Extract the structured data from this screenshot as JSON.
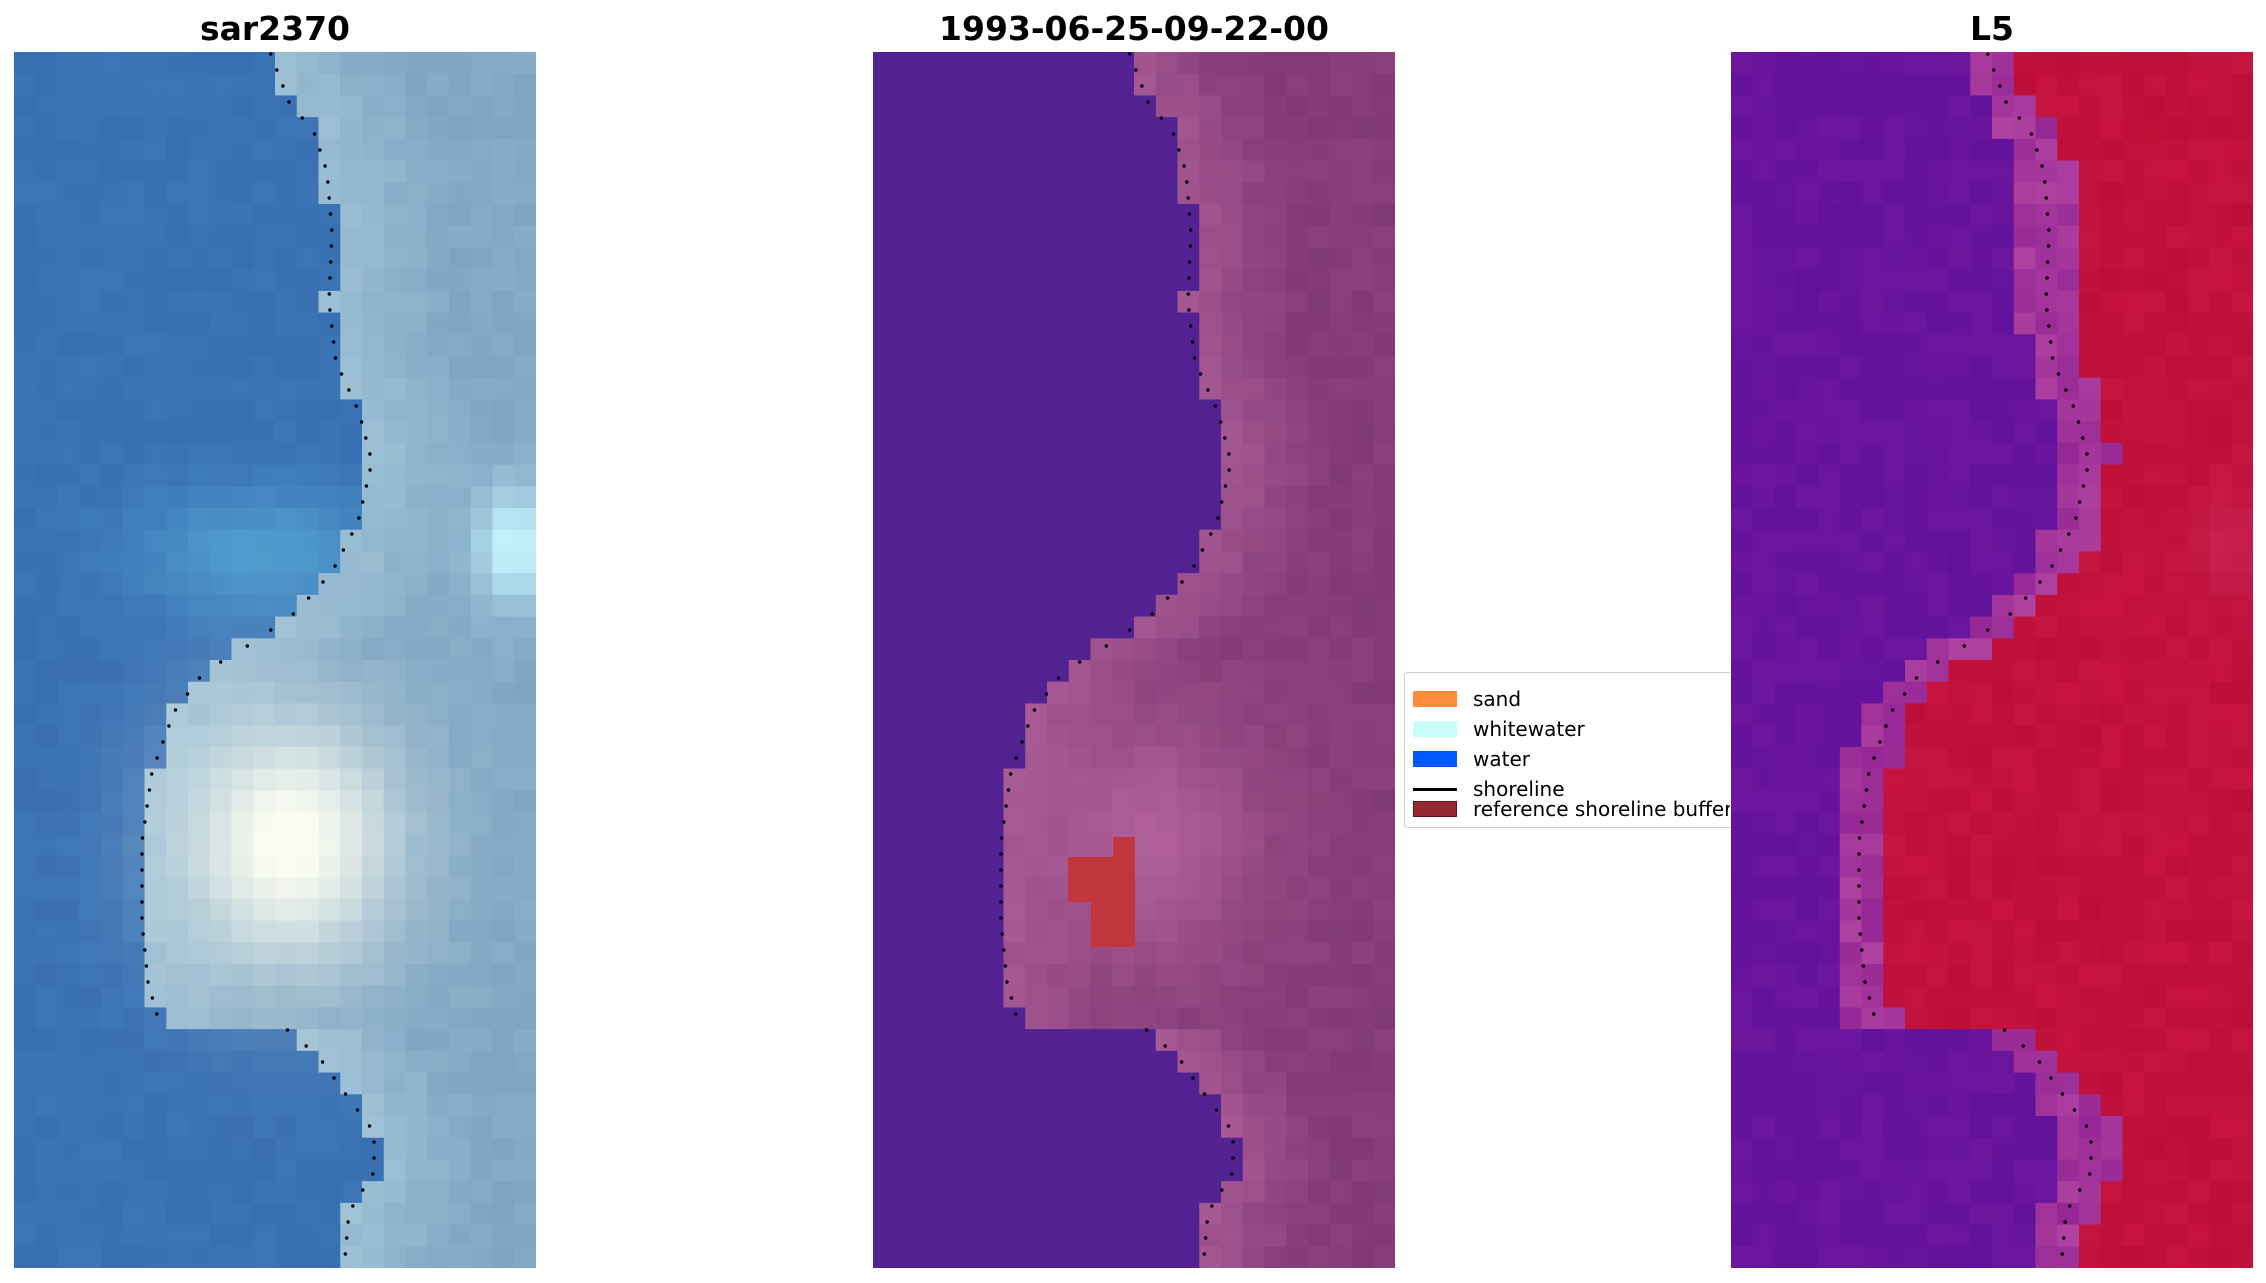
{
  "panels": [
    {
      "id": "rgb",
      "title": "sar2370",
      "colormap": "rgb"
    },
    {
      "id": "classified",
      "title": "1993-06-25-09-22-00",
      "colormap": "classified"
    },
    {
      "id": "index",
      "title": "L5",
      "colormap": "index"
    }
  ],
  "colors": {
    "sand": "#ff8c3c",
    "whitewater": "#c8fffa",
    "water": "#0059ff",
    "shoreline": "#000000",
    "reference_buffer": "#962832",
    "classified_water": "#522293",
    "classified_land": "#8a3f80",
    "index_water": "#6a1a9a",
    "index_land": "#c0103c"
  },
  "legend": {
    "entries": [
      {
        "label": "sand",
        "kind": "patch",
        "color": "#ff8c3c"
      },
      {
        "label": "whitewater",
        "kind": "patch",
        "color": "#c8fffa"
      },
      {
        "label": "water",
        "kind": "patch",
        "color": "#0059ff"
      },
      {
        "label": "shoreline",
        "kind": "line",
        "color": "#000000"
      },
      {
        "label": "reference shoreline buffer",
        "kind": "patch",
        "color": "#962832"
      }
    ]
  }
}
